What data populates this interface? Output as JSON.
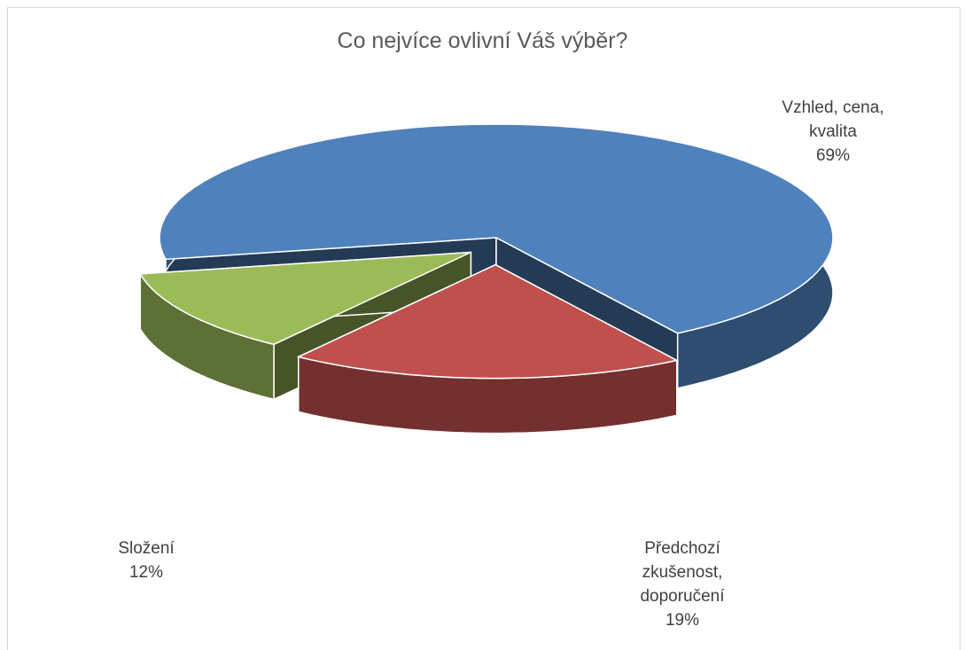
{
  "chart_data": {
    "type": "pie3d",
    "title": "Co nejvíce ovlivní Váš výběr?",
    "categories": [
      "Vzhled, cena, kvalita",
      "Předchozí zkušenost, doporučení",
      "Složení"
    ],
    "values": [
      69,
      19,
      12
    ],
    "value_labels": [
      "69%",
      "19%",
      "12%"
    ],
    "colors": [
      "#4f81bd",
      "#c0504d",
      "#9bbb59"
    ]
  }
}
